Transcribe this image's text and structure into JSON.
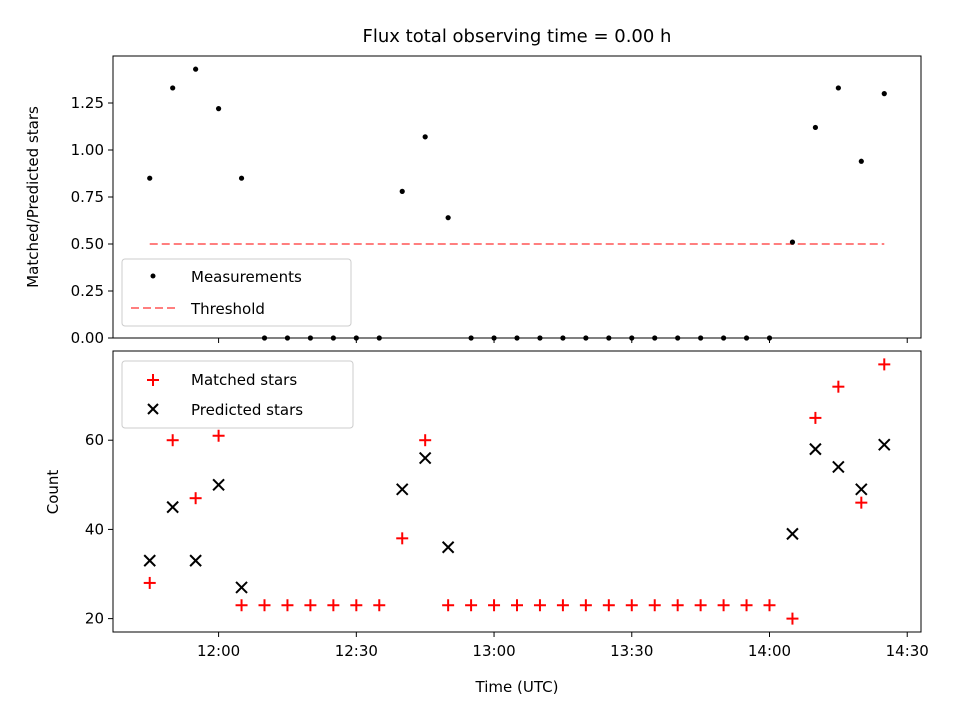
{
  "chart_data": [
    {
      "type": "scatter",
      "title": "Flux total observing time = 0.00 h",
      "xlabel": "",
      "ylabel": "Matched/Predicted stars",
      "ylim": [
        0,
        1.5
      ],
      "yticks": [
        0.0,
        0.25,
        0.5,
        0.75,
        1.0,
        1.25
      ],
      "ytick_labels": [
        "0.00",
        "0.25",
        "0.50",
        "0.75",
        "1.00",
        "1.25"
      ],
      "legend_position": "lower-left",
      "series": [
        {
          "name": "Measurements",
          "marker": "dot",
          "color": "#000000",
          "x": [
            "11:45",
            "11:50",
            "11:55",
            "12:00",
            "12:05",
            "12:10",
            "12:15",
            "12:20",
            "12:25",
            "12:30",
            "12:35",
            "12:40",
            "12:45",
            "12:50",
            "12:55",
            "13:00",
            "13:05",
            "13:10",
            "13:15",
            "13:20",
            "13:25",
            "13:30",
            "13:35",
            "13:40",
            "13:45",
            "13:50",
            "13:55",
            "14:00",
            "14:05",
            "14:10",
            "14:15",
            "14:20",
            "14:25"
          ],
          "values": [
            0.85,
            1.33,
            1.43,
            1.22,
            0.85,
            0,
            0,
            0,
            0,
            0,
            0,
            0.78,
            1.07,
            0.64,
            0,
            0,
            0,
            0,
            0,
            0,
            0,
            0,
            0,
            0,
            0,
            0,
            0,
            0,
            0.51,
            1.12,
            1.33,
            0.94,
            1.3
          ]
        },
        {
          "name": "Threshold",
          "style": "dashed",
          "color": "#ff7f7f",
          "x": [
            "11:45",
            "14:25"
          ],
          "values": [
            0.5,
            0.5
          ]
        }
      ]
    },
    {
      "type": "scatter",
      "title": "",
      "xlabel": "Time (UTC)",
      "ylabel": "Count",
      "ylim": [
        17,
        80
      ],
      "xlim": [
        "11:37",
        "14:33"
      ],
      "yticks": [
        20,
        40,
        60
      ],
      "ytick_labels": [
        "20",
        "40",
        "60"
      ],
      "xticks": [
        "12:00",
        "12:30",
        "13:00",
        "13:30",
        "14:00",
        "14:30"
      ],
      "xtick_labels": [
        "12:00",
        "12:30",
        "13:00",
        "13:30",
        "14:00",
        "14:30"
      ],
      "legend_position": "upper-left",
      "series": [
        {
          "name": "Matched stars",
          "marker": "plus",
          "color": "#ff0000",
          "x": [
            "11:45",
            "11:50",
            "11:55",
            "12:00",
            "12:05",
            "12:10",
            "12:15",
            "12:20",
            "12:25",
            "12:30",
            "12:35",
            "12:40",
            "12:45",
            "12:50",
            "12:55",
            "13:00",
            "13:05",
            "13:10",
            "13:15",
            "13:20",
            "13:25",
            "13:30",
            "13:35",
            "13:40",
            "13:45",
            "13:50",
            "13:55",
            "14:00",
            "14:05",
            "14:10",
            "14:15",
            "14:20",
            "14:25"
          ],
          "values": [
            28,
            60,
            47,
            61,
            23,
            23,
            23,
            23,
            23,
            23,
            23,
            38,
            60,
            23,
            23,
            23,
            23,
            23,
            23,
            23,
            23,
            23,
            23,
            23,
            23,
            23,
            23,
            23,
            20,
            65,
            72,
            46,
            77
          ]
        },
        {
          "name": "Predicted stars",
          "marker": "x",
          "color": "#000000",
          "x": [
            "11:45",
            "11:50",
            "11:55",
            "12:00",
            "12:05",
            "12:40",
            "12:45",
            "12:50",
            "14:05",
            "14:10",
            "14:15",
            "14:20",
            "14:25"
          ],
          "values": [
            33,
            45,
            33,
            50,
            27,
            49,
            56,
            36,
            39,
            58,
            54,
            49,
            59
          ]
        }
      ]
    }
  ]
}
